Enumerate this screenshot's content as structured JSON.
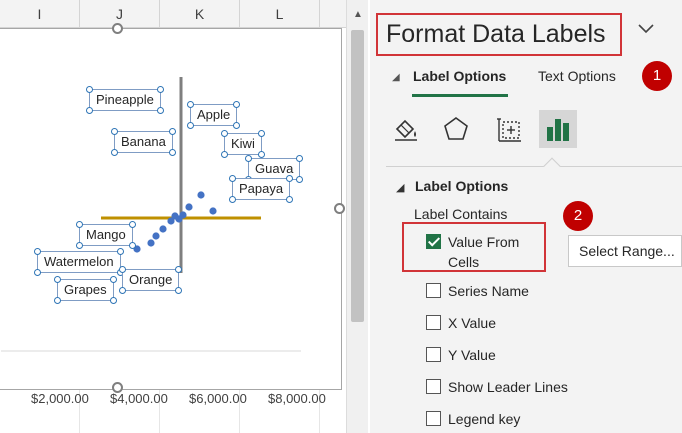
{
  "sheet": {
    "column_headers": [
      "I",
      "J",
      "K",
      "L"
    ],
    "chart": {
      "data_labels": [
        "Pineapple",
        "Apple",
        "Banana",
        "Kiwi",
        "Guava",
        "Papaya",
        "Mango",
        "Watermelon",
        "Orange",
        "Grapes"
      ],
      "x_ticks": [
        "$2,000.00",
        "$4,000.00",
        "$6,000.00",
        "$8,000.00"
      ],
      "colors": {
        "points": "#4472c4",
        "vertical_line": "#7f7f7f",
        "horizontal_line": "#bf9000"
      }
    }
  },
  "pane": {
    "title": "Format Data Labels",
    "chevron_icon": "chevron-down-icon",
    "callouts": [
      "1",
      "2"
    ],
    "tabs": [
      {
        "label": "Label Options",
        "active": true
      },
      {
        "label": "Text Options",
        "active": false
      }
    ],
    "icons": [
      "fill-line-icon",
      "effects-pentagon-icon",
      "size-properties-icon",
      "label-options-bar-icon"
    ],
    "section_title": "Label Options",
    "label_contains": "Label Contains",
    "options": [
      {
        "label": "Value From Cells",
        "checked": true
      },
      {
        "label": "Series Name",
        "checked": false
      },
      {
        "label": "X Value",
        "checked": false
      },
      {
        "label": "Y Value",
        "checked": false
      },
      {
        "label": "Show Leader Lines",
        "checked": false
      },
      {
        "label": "Legend key",
        "checked": false
      }
    ],
    "select_range_label": "Select Range...",
    "accent_color": "#217346",
    "highlight_color": "#d13438"
  }
}
